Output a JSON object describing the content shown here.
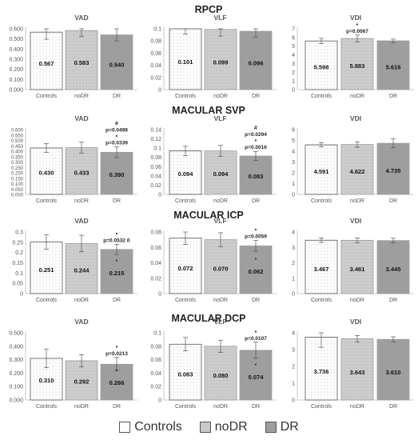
{
  "legend": {
    "items": [
      {
        "label": "Controls",
        "color": "#ffffff",
        "pattern": "dots"
      },
      {
        "label": "noDR",
        "color": "#c8c8c8",
        "pattern": "dots"
      },
      {
        "label": "DR",
        "color": "#9e9e9e",
        "pattern": "solid"
      }
    ]
  },
  "chart_data": [
    {
      "type": "bar",
      "section": "RPCP",
      "title": "VAD",
      "categories": [
        "Controls",
        "noDR",
        "DR"
      ],
      "values": [
        0.567,
        0.583,
        0.54
      ],
      "errors": [
        0.07,
        0.06,
        0.06
      ],
      "ylim": [
        0,
        0.6
      ],
      "yticks": [
        "0.000",
        "0.100",
        "0.200",
        "0.300",
        "0.400",
        "0.500",
        "0.600"
      ],
      "value_labels": [
        "0.567",
        "0.583",
        "0.540"
      ],
      "annotations": [
        [],
        [],
        []
      ]
    },
    {
      "type": "bar",
      "section": "RPCP",
      "title": "VLF",
      "categories": [
        "Controls",
        "noDR",
        "DR"
      ],
      "values": [
        0.101,
        0.099,
        0.096
      ],
      "errors": [
        0.01,
        0.011,
        0.01
      ],
      "ylim": [
        0,
        0.1
      ],
      "yticks": [
        "0",
        "0.02",
        "0.04",
        "0.06",
        "0.08",
        "0.1"
      ],
      "value_labels": [
        "0.101",
        "0.099",
        "0.096"
      ],
      "annotations": [
        [],
        [],
        []
      ]
    },
    {
      "type": "bar",
      "section": "RPCP",
      "title": "VDI",
      "categories": [
        "Controls",
        "noDR",
        "DR"
      ],
      "values": [
        5.598,
        5.883,
        5.616
      ],
      "errors": [
        0.3,
        0.4,
        0.2
      ],
      "ylim": [
        0,
        7
      ],
      "yticks": [
        "0",
        "1",
        "2",
        "3",
        "4",
        "5",
        "6",
        "7"
      ],
      "value_labels": [
        "5.598",
        "5.883",
        "5.616"
      ],
      "annotations": [
        [],
        [
          "•",
          "p=0.0067"
        ],
        []
      ]
    },
    {
      "type": "bar",
      "section": "MACULAR SVP",
      "title": "VAD",
      "categories": [
        "Controls",
        "noDR",
        "DR"
      ],
      "values": [
        0.43,
        0.433,
        0.39
      ],
      "errors": [
        0.04,
        0.05,
        0.05
      ],
      "ylim": [
        0,
        0.6
      ],
      "yticks": [
        "0.000",
        "0.050",
        "0.100",
        "0.150",
        "0.200",
        "0.250",
        "0.300",
        "0.350",
        "0.400",
        "0.450",
        "0.500",
        "0.550",
        "0.600"
      ],
      "value_labels": [
        "0.430",
        "0.433",
        "0.390"
      ],
      "annotations": [
        [],
        [],
        [
          "#",
          "p=0.0498",
          "•",
          "p=0.0339"
        ]
      ]
    },
    {
      "type": "bar",
      "section": "MACULAR SVP",
      "title": "VLF",
      "categories": [
        "Controls",
        "noDR",
        "DR"
      ],
      "values": [
        0.094,
        0.094,
        0.083
      ],
      "errors": [
        0.01,
        0.012,
        0.01
      ],
      "ylim": [
        0,
        0.14
      ],
      "yticks": [
        "0",
        "0.02",
        "0.04",
        "0.06",
        "0.08",
        "0.1",
        "0.12",
        "0.14"
      ],
      "value_labels": [
        "0.094",
        "0.094",
        "0.083"
      ],
      "annotations": [
        [],
        [],
        [
          "#",
          "p=0.0294",
          "•",
          "p=0.0016"
        ]
      ]
    },
    {
      "type": "bar",
      "section": "MACULAR SVP",
      "title": "VDI",
      "categories": [
        "Controls",
        "noDR",
        "DR"
      ],
      "values": [
        4.591,
        4.622,
        4.735
      ],
      "errors": [
        0.2,
        0.25,
        0.4
      ],
      "ylim": [
        0,
        6
      ],
      "yticks": [
        "0",
        "1",
        "2",
        "3",
        "4",
        "5",
        "6"
      ],
      "value_labels": [
        "4.591",
        "4.622",
        "4.735"
      ],
      "annotations": [
        [],
        [],
        []
      ]
    },
    {
      "type": "bar",
      "section": "MACULAR ICP",
      "title": "VAD",
      "categories": [
        "Controls",
        "noDR",
        "DR"
      ],
      "values": [
        0.251,
        0.244,
        0.215
      ],
      "errors": [
        0.035,
        0.04,
        0.025
      ],
      "ylim": [
        0,
        0.3
      ],
      "yticks": [
        "0",
        "0.05",
        "0.1",
        "0.15",
        "0.2",
        "0.25",
        "0.3"
      ],
      "value_labels": [
        "0.251",
        "0.244",
        "0.215"
      ],
      "annotations": [
        [],
        [],
        [
          "•",
          "p=0.0532 ß"
        ]
      ]
    },
    {
      "type": "bar",
      "section": "MACULAR ICP",
      "title": "VLF",
      "categories": [
        "Controls",
        "noDR",
        "DR"
      ],
      "values": [
        0.072,
        0.07,
        0.062
      ],
      "errors": [
        0.008,
        0.009,
        0.007
      ],
      "ylim": [
        0,
        0.08
      ],
      "yticks": [
        "0",
        "0.02",
        "0.04",
        "0.06",
        "0.08"
      ],
      "value_labels": [
        "0.072",
        "0.070",
        "0.062"
      ],
      "annotations": [
        [],
        [],
        [
          "•",
          "p=0.0059"
        ]
      ]
    },
    {
      "type": "bar",
      "section": "MACULAR ICP",
      "title": "VDI",
      "categories": [
        "Controls",
        "noDR",
        "DR"
      ],
      "values": [
        3.467,
        3.461,
        3.445
      ],
      "errors": [
        0.15,
        0.15,
        0.15
      ],
      "ylim": [
        0,
        4
      ],
      "yticks": [
        "0",
        "1",
        "2",
        "3",
        "4"
      ],
      "value_labels": [
        "3.467",
        "3.461",
        "3.445"
      ],
      "annotations": [
        [],
        [],
        []
      ]
    },
    {
      "type": "bar",
      "section": "MACULAR DCP",
      "title": "VAD",
      "categories": [
        "Controls",
        "noDR",
        "DR"
      ],
      "values": [
        0.31,
        0.292,
        0.266
      ],
      "errors": [
        0.07,
        0.045,
        0.05
      ],
      "ylim": [
        0,
        0.5
      ],
      "yticks": [
        "0.000",
        "0.100",
        "0.200",
        "0.300",
        "0.400",
        "0.500"
      ],
      "value_labels": [
        "0.310",
        "0.292",
        "0.266"
      ],
      "annotations": [
        [],
        [],
        [
          "•",
          "p=0.0213"
        ]
      ]
    },
    {
      "type": "bar",
      "section": "MACULAR DCP",
      "title": "VLF",
      "categories": [
        "Controls",
        "noDR",
        "DR"
      ],
      "values": [
        0.083,
        0.08,
        0.074
      ],
      "errors": [
        0.01,
        0.009,
        0.012
      ],
      "ylim": [
        0,
        0.1
      ],
      "yticks": [
        "0",
        "0.02",
        "0.04",
        "0.06",
        "0.08",
        "0.1"
      ],
      "value_labels": [
        "0.083",
        "0.080",
        "0.074"
      ],
      "annotations": [
        [],
        [],
        [
          "•",
          "p=0.0107"
        ]
      ]
    },
    {
      "type": "bar",
      "section": "MACULAR DCP",
      "title": "VDI",
      "categories": [
        "Controls",
        "noDR",
        "DR"
      ],
      "values": [
        3.736,
        3.643,
        3.61
      ],
      "errors": [
        0.6,
        0.2,
        0.15
      ],
      "ylim": [
        0,
        4
      ],
      "yticks": [
        "0",
        "1",
        "2",
        "3",
        "4"
      ],
      "value_labels": [
        "3.736",
        "3.643",
        "3.610"
      ],
      "annotations": [
        [],
        [],
        []
      ]
    }
  ]
}
